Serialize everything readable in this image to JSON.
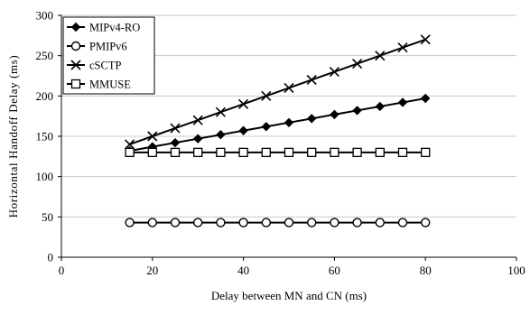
{
  "chart_data": {
    "type": "line",
    "title": "",
    "xlabel": "Delay between MN and CN (ms)",
    "ylabel": "Horizontal Handoff Delay (ms)",
    "xlim": [
      0,
      100
    ],
    "ylim": [
      0,
      300
    ],
    "xticks": [
      0,
      20,
      40,
      60,
      80,
      100
    ],
    "yticks": [
      0,
      50,
      100,
      150,
      200,
      250,
      300
    ],
    "xtick_labels": [
      "0",
      "20",
      "40",
      "60",
      "80",
      "100"
    ],
    "ytick_labels": [
      "0",
      "50",
      "100",
      "150",
      "200",
      "250",
      "300"
    ],
    "grid": "horizontal",
    "legend_position": "top-left",
    "x": [
      15,
      20,
      25,
      30,
      35,
      40,
      45,
      50,
      55,
      60,
      65,
      70,
      75,
      80
    ],
    "series": [
      {
        "name": "MIPv4-RO",
        "marker": "diamond",
        "values": [
          132,
          137,
          142,
          147,
          152,
          157,
          162,
          167,
          172,
          177,
          182,
          187,
          192,
          197
        ]
      },
      {
        "name": "PMIPv6",
        "marker": "circle",
        "values": [
          43,
          43,
          43,
          43,
          43,
          43,
          43,
          43,
          43,
          43,
          43,
          43,
          43,
          43
        ]
      },
      {
        "name": "cSCTP",
        "marker": "x",
        "values": [
          140,
          150,
          160,
          170,
          180,
          190,
          200,
          210,
          220,
          230,
          240,
          250,
          260,
          270
        ]
      },
      {
        "name": "MMUSE",
        "marker": "square",
        "values": [
          130,
          130,
          130,
          130,
          130,
          130,
          130,
          130,
          130,
          130,
          130,
          130,
          130,
          130
        ]
      }
    ],
    "colors": {
      "line": "#000000",
      "grid": "#c8c8c8",
      "axis": "#000000"
    }
  }
}
